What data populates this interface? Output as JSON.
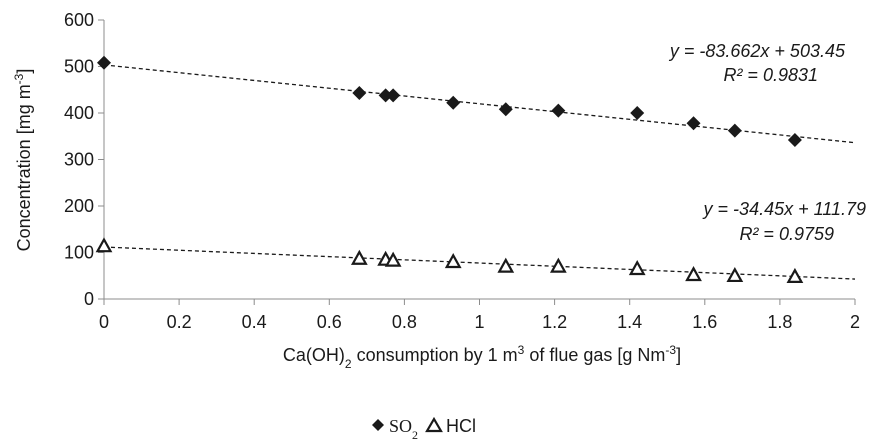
{
  "chart_data": {
    "type": "scatter",
    "xlabel_parts": {
      "pre": "Ca(OH)",
      "sub": "2",
      "mid": " consumption by 1 m",
      "sup": "3",
      "post": " of flue gas [g Nm",
      "sup2": "-3",
      "end": "]"
    },
    "ylabel_parts": {
      "pre": "Concentration [mg m",
      "sup": "-3",
      "post": "]"
    },
    "xlim": [
      0,
      2
    ],
    "ylim": [
      0,
      600
    ],
    "xticks": [
      "0",
      "0.2",
      "0.4",
      "0.6",
      "0.8",
      "1",
      "1.2",
      "1.4",
      "1.6",
      "1.8",
      "2"
    ],
    "yticks": [
      "0",
      "100",
      "200",
      "300",
      "400",
      "500",
      "600"
    ],
    "grid": false,
    "legend_position": "bottom-center",
    "series": [
      {
        "name": "SO",
        "name_sub": "2",
        "marker": "filled-diamond",
        "color": "#1a1a1a",
        "x": [
          0,
          0.68,
          0.75,
          0.77,
          0.93,
          1.07,
          1.21,
          1.42,
          1.57,
          1.68,
          1.84
        ],
        "y": [
          508,
          443,
          438,
          438,
          422,
          408,
          405,
          400,
          378,
          362,
          342
        ],
        "trendline": {
          "slope": -83.662,
          "intercept": 503.45,
          "equation": "y = -83.662x + 503.45",
          "r2": "R² = 0.9831"
        }
      },
      {
        "name": "HCl",
        "marker": "open-triangle",
        "color": "#1a1a1a",
        "x": [
          0,
          0.68,
          0.75,
          0.77,
          0.93,
          1.07,
          1.21,
          1.42,
          1.57,
          1.68,
          1.84
        ],
        "y": [
          114,
          87,
          85,
          83,
          80,
          70,
          70,
          65,
          52,
          50,
          48
        ],
        "trendline": {
          "slope": -34.45,
          "intercept": 111.79,
          "equation": "y = -34.45x + 111.79",
          "r2": "R² = 0.9759"
        }
      }
    ]
  }
}
